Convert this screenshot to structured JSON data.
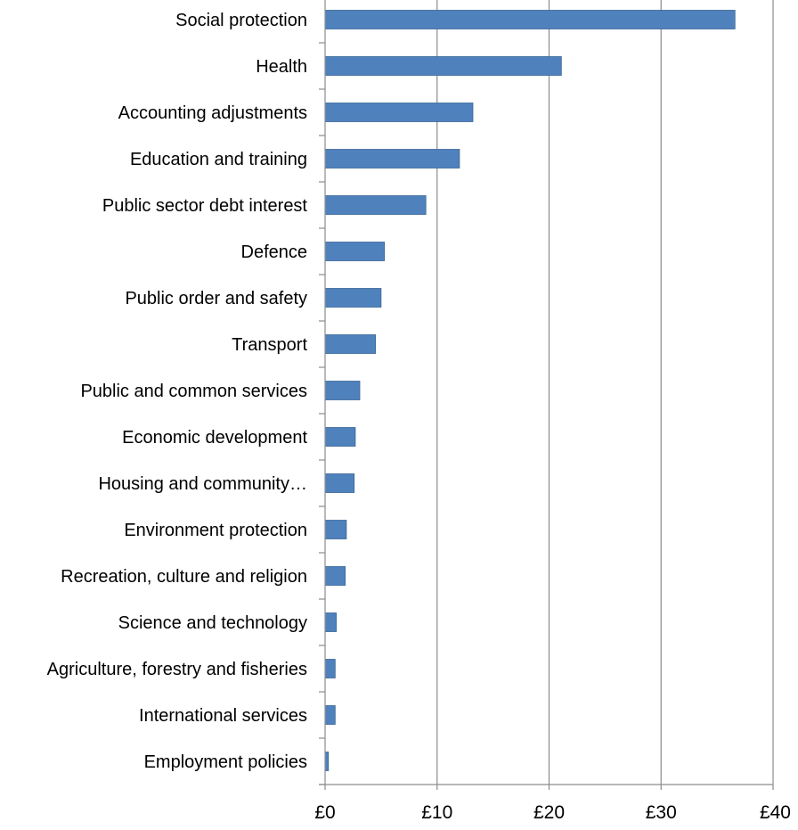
{
  "chart_data": {
    "type": "bar",
    "orientation": "horizontal",
    "title": "",
    "xlabel": "",
    "ylabel": "",
    "categories": [
      "Social protection",
      "Health",
      "Accounting adjustments",
      "Education and training",
      "Public sector debt interest",
      "Defence",
      "Public order and safety",
      "Transport",
      "Public and common services",
      "Economic development ",
      "Housing and community…",
      "Environment protection",
      "Recreation, culture and religion",
      "Science and technology",
      "Agriculture, forestry and fisheries",
      "International services",
      "Employment policies"
    ],
    "values": [
      36.6,
      21.1,
      13.2,
      12.0,
      9.0,
      5.3,
      5.0,
      4.5,
      3.1,
      2.7,
      2.6,
      1.9,
      1.8,
      1.0,
      0.9,
      0.9,
      0.3
    ],
    "xlim": [
      0,
      40
    ],
    "xticks": [
      0,
      10,
      20,
      30,
      40
    ],
    "xtick_labels": [
      "£0",
      "£10",
      "£20",
      "£30",
      "£40"
    ],
    "grid": "vertical",
    "legend": "none",
    "bar_color": "#4F81BD",
    "bar_edge_color": "#3A6795",
    "grid_color": "#8C8C8C"
  }
}
